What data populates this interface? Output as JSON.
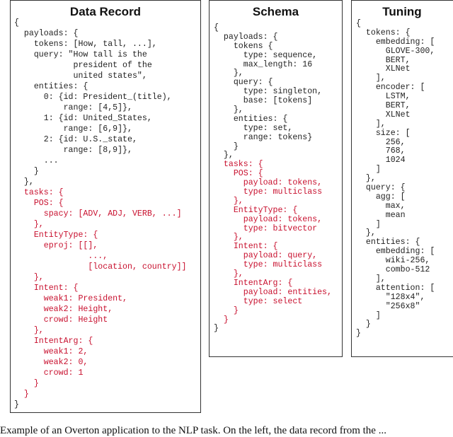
{
  "colors": {
    "task_text": "#c8102e",
    "text": "#222222"
  },
  "panels": [
    {
      "title": "Data Record",
      "lines": [
        {
          "t": "{",
          "red": false
        },
        {
          "t": "  payloads: {",
          "red": false
        },
        {
          "t": "    tokens: [How, tall, ...],",
          "red": false
        },
        {
          "t": "    query: \"How tall is the",
          "red": false
        },
        {
          "t": "            president of the",
          "red": false
        },
        {
          "t": "            united states\",",
          "red": false
        },
        {
          "t": "    entities: {",
          "red": false
        },
        {
          "t": "      0: {id: President_(title),",
          "red": false
        },
        {
          "t": "          range: [4,5]},",
          "red": false
        },
        {
          "t": "      1: {id: United_States,",
          "red": false
        },
        {
          "t": "          range: [6,9]},",
          "red": false
        },
        {
          "t": "      2: {id: U.S._state,",
          "red": false
        },
        {
          "t": "          range: [8,9]},",
          "red": false
        },
        {
          "t": "      ...",
          "red": false
        },
        {
          "t": "    }",
          "red": false
        },
        {
          "t": "  },",
          "red": false
        },
        {
          "t": "  tasks: {",
          "red": true
        },
        {
          "t": "    POS: {",
          "red": true
        },
        {
          "t": "      spacy: [ADV, ADJ, VERB, ...]",
          "red": true
        },
        {
          "t": "    },",
          "red": true
        },
        {
          "t": "    EntityType: {",
          "red": true
        },
        {
          "t": "      eproj: [[],",
          "red": true
        },
        {
          "t": "               ...,",
          "red": true
        },
        {
          "t": "               [location, country]]",
          "red": true
        },
        {
          "t": "    },",
          "red": true
        },
        {
          "t": "    Intent: {",
          "red": true
        },
        {
          "t": "      weak1: President,",
          "red": true
        },
        {
          "t": "      weak2: Height,",
          "red": true
        },
        {
          "t": "      crowd: Height",
          "red": true
        },
        {
          "t": "    },",
          "red": true
        },
        {
          "t": "    IntentArg: {",
          "red": true
        },
        {
          "t": "      weak1: 2,",
          "red": true
        },
        {
          "t": "      weak2: 0,",
          "red": true
        },
        {
          "t": "      crowd: 1",
          "red": true
        },
        {
          "t": "    }",
          "red": true
        },
        {
          "t": "  }",
          "red": true
        },
        {
          "t": "}",
          "red": false
        }
      ]
    },
    {
      "title": "Schema",
      "lines": [
        {
          "t": "{",
          "red": false
        },
        {
          "t": "  payloads: {",
          "red": false
        },
        {
          "t": "    tokens {",
          "red": false
        },
        {
          "t": "      type: sequence,",
          "red": false
        },
        {
          "t": "      max_length: 16",
          "red": false
        },
        {
          "t": "    },",
          "red": false
        },
        {
          "t": "    query: {",
          "red": false
        },
        {
          "t": "      type: singleton,",
          "red": false
        },
        {
          "t": "      base: [tokens]",
          "red": false
        },
        {
          "t": "    },",
          "red": false
        },
        {
          "t": "    entities: {",
          "red": false
        },
        {
          "t": "      type: set,",
          "red": false
        },
        {
          "t": "      range: tokens}",
          "red": false
        },
        {
          "t": "    }",
          "red": false
        },
        {
          "t": "  },",
          "red": false
        },
        {
          "t": "  tasks: {",
          "red": true
        },
        {
          "t": "    POS: {",
          "red": true
        },
        {
          "t": "      payload: tokens,",
          "red": true
        },
        {
          "t": "      type: multiclass",
          "red": true
        },
        {
          "t": "    },",
          "red": true
        },
        {
          "t": "    EntityType: {",
          "red": true
        },
        {
          "t": "      payload: tokens,",
          "red": true
        },
        {
          "t": "      type: bitvector",
          "red": true
        },
        {
          "t": "    },",
          "red": true
        },
        {
          "t": "    Intent: {",
          "red": true
        },
        {
          "t": "      payload: query,",
          "red": true
        },
        {
          "t": "      type: multiclass",
          "red": true
        },
        {
          "t": "    },",
          "red": true
        },
        {
          "t": "    IntentArg: {",
          "red": true
        },
        {
          "t": "      payload: entities,",
          "red": true
        },
        {
          "t": "      type: select",
          "red": true
        },
        {
          "t": "    }",
          "red": true
        },
        {
          "t": "  }",
          "red": true
        },
        {
          "t": "}",
          "red": false
        }
      ]
    },
    {
      "title": "Tuning",
      "lines": [
        {
          "t": "{",
          "red": false
        },
        {
          "t": "  tokens: {",
          "red": false
        },
        {
          "t": "    embedding: [",
          "red": false
        },
        {
          "t": "      GLOVE-300,",
          "red": false
        },
        {
          "t": "      BERT,",
          "red": false
        },
        {
          "t": "      XLNet",
          "red": false
        },
        {
          "t": "    ],",
          "red": false
        },
        {
          "t": "    encoder: [",
          "red": false
        },
        {
          "t": "      LSTM,",
          "red": false
        },
        {
          "t": "      BERT,",
          "red": false
        },
        {
          "t": "      XLNet",
          "red": false
        },
        {
          "t": "    ],",
          "red": false
        },
        {
          "t": "    size: [",
          "red": false
        },
        {
          "t": "      256,",
          "red": false
        },
        {
          "t": "      768,",
          "red": false
        },
        {
          "t": "      1024",
          "red": false
        },
        {
          "t": "    ]",
          "red": false
        },
        {
          "t": "  },",
          "red": false
        },
        {
          "t": "  query: {",
          "red": false
        },
        {
          "t": "    agg: [",
          "red": false
        },
        {
          "t": "      max,",
          "red": false
        },
        {
          "t": "      mean",
          "red": false
        },
        {
          "t": "    ]",
          "red": false
        },
        {
          "t": "  },",
          "red": false
        },
        {
          "t": "  entities: {",
          "red": false
        },
        {
          "t": "    embedding: [",
          "red": false
        },
        {
          "t": "      wiki-256,",
          "red": false
        },
        {
          "t": "      combo-512",
          "red": false
        },
        {
          "t": "    ],",
          "red": false
        },
        {
          "t": "    attention: [",
          "red": false
        },
        {
          "t": "      \"128x4\",",
          "red": false
        },
        {
          "t": "      \"256x8\"",
          "red": false
        },
        {
          "t": "    ]",
          "red": false
        },
        {
          "t": "  }",
          "red": false
        },
        {
          "t": "}",
          "red": false
        }
      ]
    }
  ],
  "caption": "Example of an Overton application to the NLP task. On the left, the data record from the ..."
}
